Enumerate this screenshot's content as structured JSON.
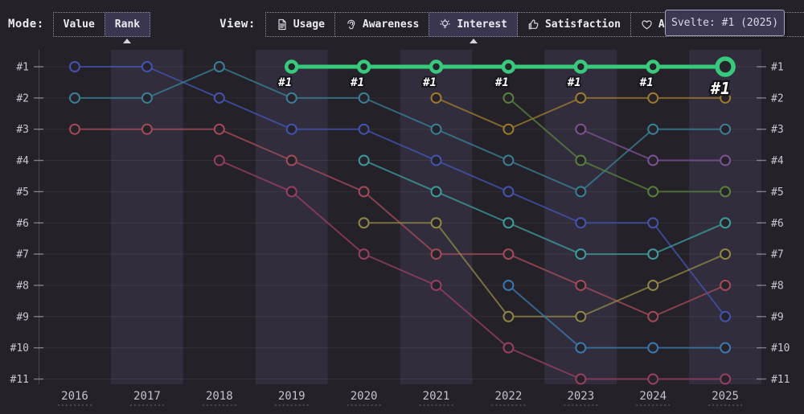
{
  "toolbar": {
    "mode_label": "Mode:",
    "modes": [
      {
        "label": "Value",
        "active": false
      },
      {
        "label": "Rank",
        "active": true
      }
    ],
    "view_label": "View:",
    "tabs": [
      {
        "label": "Usage",
        "icon": "document-icon",
        "active": false
      },
      {
        "label": "Awareness",
        "icon": "ear-icon",
        "active": false
      },
      {
        "label": "Interest",
        "icon": "lightbulb-icon",
        "active": true
      },
      {
        "label": "Satisfaction",
        "icon": "thumbs-up-icon",
        "active": false
      },
      {
        "label": "Appreciation",
        "icon": "heart-icon",
        "active": false
      }
    ]
  },
  "tooltip": {
    "text": "Svelte: #1 (2025)"
  },
  "colors": {
    "background": "#242128",
    "band": "#312d3c",
    "highlight_green": "#38c97c",
    "tooltip_bg": "#3c3752",
    "active_button_bg": "#3b3650"
  },
  "chart_data": {
    "type": "line",
    "mode": "rank",
    "title": "",
    "xlabel": "",
    "ylabel": "",
    "x": [
      "2016",
      "2017",
      "2018",
      "2019",
      "2020",
      "2021",
      "2022",
      "2023",
      "2024",
      "2025"
    ],
    "ylabels": [
      "#1",
      "#2",
      "#3",
      "#4",
      "#5",
      "#6",
      "#7",
      "#8",
      "#9",
      "#10",
      "#11"
    ],
    "ylim": [
      1,
      11
    ],
    "grid": true,
    "alternating_year_bands": true,
    "series": [
      {
        "id": "series-rose",
        "color": "#963f62",
        "ranks": [
          null,
          null,
          4,
          5,
          7,
          8,
          10,
          11,
          11,
          11
        ]
      },
      {
        "id": "series-crimson",
        "color": "#a34b58",
        "ranks": [
          3,
          3,
          3,
          4,
          5,
          7,
          7,
          8,
          9,
          8
        ]
      },
      {
        "id": "series-indigo",
        "color": "#4353ae",
        "ranks": [
          1,
          1,
          2,
          3,
          3,
          4,
          5,
          6,
          6,
          9
        ]
      },
      {
        "id": "series-teal",
        "color": "#3a7f95",
        "ranks": [
          2,
          2,
          1,
          2,
          2,
          3,
          4,
          5,
          3,
          3
        ]
      },
      {
        "id": "series-cyan",
        "color": "#3f9a9b",
        "ranks": [
          null,
          null,
          null,
          null,
          4,
          5,
          6,
          7,
          7,
          6
        ]
      },
      {
        "id": "series-olive",
        "color": "#8f8747",
        "ranks": [
          null,
          null,
          null,
          null,
          6,
          6,
          9,
          9,
          8,
          7
        ]
      },
      {
        "id": "series-amber",
        "color": "#9c7a2e",
        "ranks": [
          null,
          null,
          null,
          null,
          null,
          2,
          3,
          2,
          2,
          2
        ]
      },
      {
        "id": "series-moss",
        "color": "#57803d",
        "ranks": [
          null,
          null,
          null,
          null,
          null,
          null,
          2,
          4,
          5,
          5
        ]
      },
      {
        "id": "series-steelblue",
        "color": "#3a78ad",
        "ranks": [
          null,
          null,
          null,
          null,
          null,
          null,
          8,
          10,
          10,
          10
        ]
      },
      {
        "id": "series-violet",
        "color": "#7b5294",
        "ranks": [
          null,
          null,
          null,
          null,
          null,
          null,
          null,
          3,
          4,
          4
        ]
      },
      {
        "id": "svelte",
        "label": "Svelte",
        "color": "#38c97c",
        "highlight": true,
        "ranks": [
          null,
          null,
          null,
          1,
          1,
          1,
          1,
          1,
          1,
          1
        ],
        "point_label": "#1",
        "final_point_label": "#1"
      }
    ]
  }
}
